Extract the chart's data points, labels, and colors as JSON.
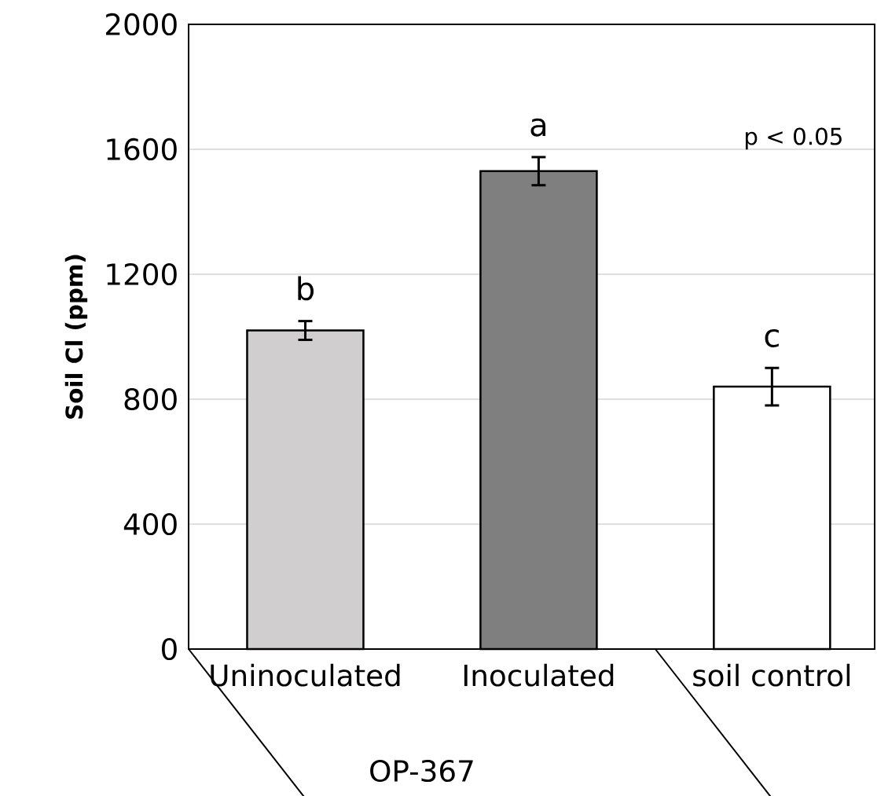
{
  "chart_data": {
    "type": "bar",
    "ylabel": "Soil Cl (ppm)",
    "categories": [
      "Uninoculated",
      "Inoculated",
      "soil control"
    ],
    "values": [
      1020,
      1530,
      840
    ],
    "errors": [
      30,
      45,
      60
    ],
    "colors": [
      "#d0cece",
      "#7f7f7f",
      "#ffffff"
    ],
    "ylim": [
      0,
      2000
    ],
    "yticks": [
      0,
      400,
      800,
      1200,
      1600,
      2000
    ],
    "grid": "y",
    "annotations": [
      {
        "text": "b",
        "x": "Uninoculated",
        "y": 1050
      },
      {
        "text": "a",
        "x": "Inoculated",
        "y": 1575
      },
      {
        "text": "c",
        "x": "soil control",
        "y": 900
      },
      "p < 0.05",
      "OP-367"
    ]
  }
}
